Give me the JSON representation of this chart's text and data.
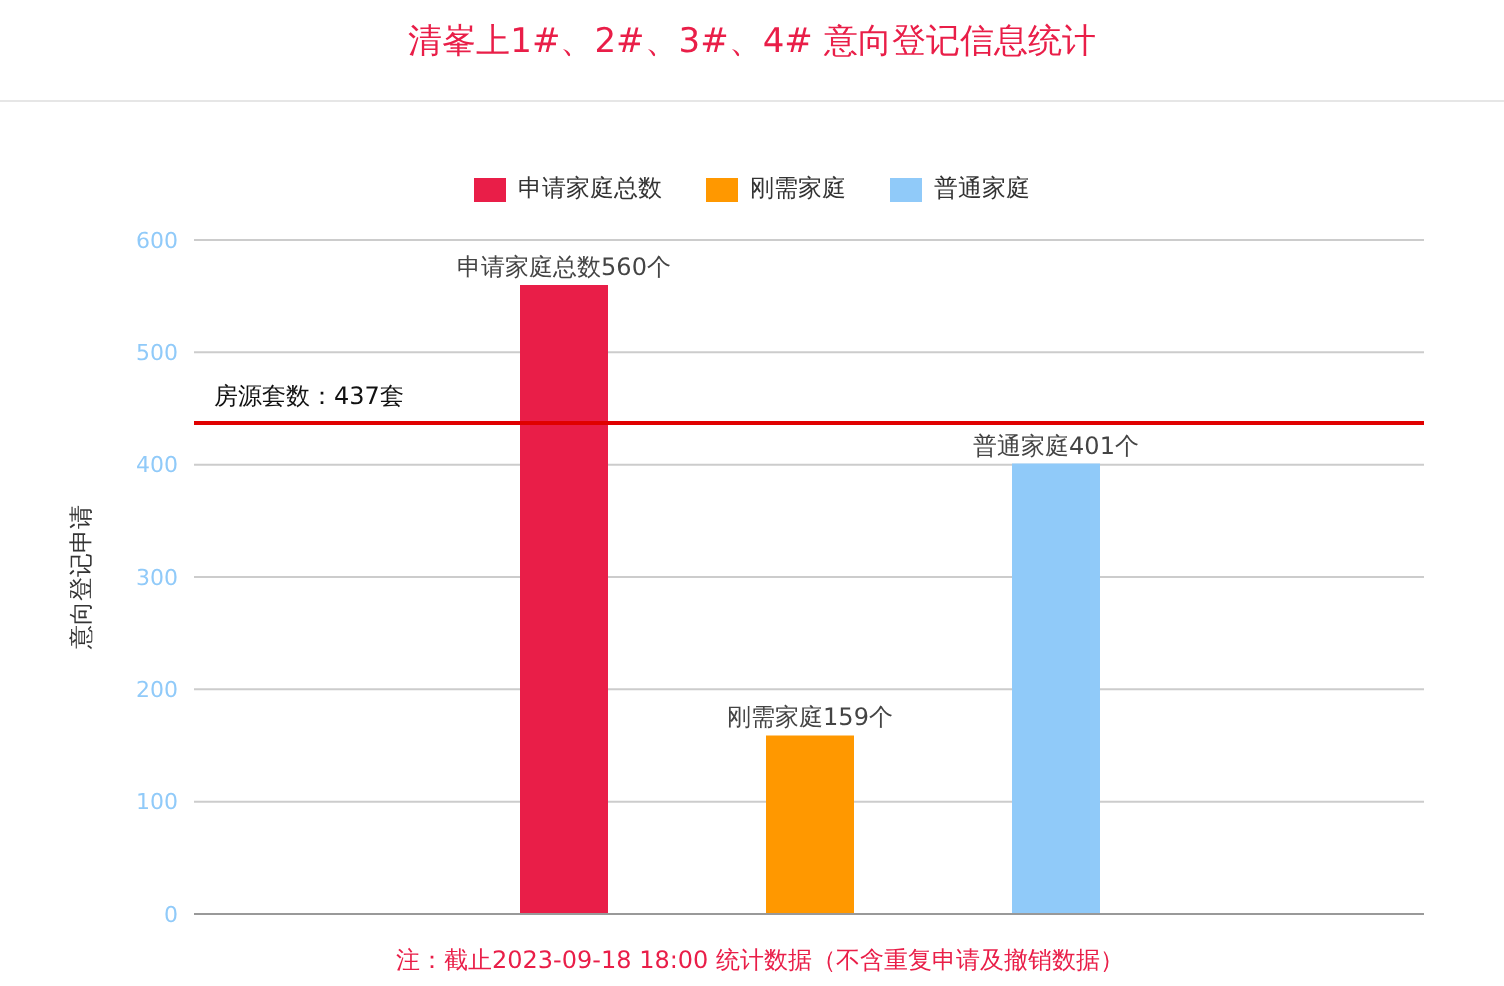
{
  "chart_data": {
    "type": "bar",
    "title": "清峯上1#、2#、3#、4# 意向登记信息统计",
    "ylabel": "意向登记申请",
    "categories": [
      null
    ],
    "series": [
      {
        "name": "申请家庭总数",
        "color": "#e91e48",
        "values": [
          560
        ],
        "value_labels": [
          "申请家庭总数560个"
        ]
      },
      {
        "name": "刚需家庭",
        "color": "#ff9800",
        "values": [
          159
        ],
        "value_labels": [
          "刚需家庭159个"
        ]
      },
      {
        "name": "普通家庭",
        "color": "#90caf9",
        "values": [
          401
        ],
        "value_labels": [
          "普通家庭401个"
        ]
      }
    ],
    "ylim": [
      0,
      600
    ],
    "yticks": [
      0,
      100,
      200,
      300,
      400,
      500,
      600
    ],
    "grid": "y",
    "legend": "top",
    "ref_lines": [
      {
        "axis": "y",
        "value": 437,
        "label": "房源套数：437套",
        "color": "#e00000"
      }
    ],
    "annotations": [
      "注：截止2023-09-18 18:00 统计数据（不含重复申请及撤销数据）"
    ]
  }
}
